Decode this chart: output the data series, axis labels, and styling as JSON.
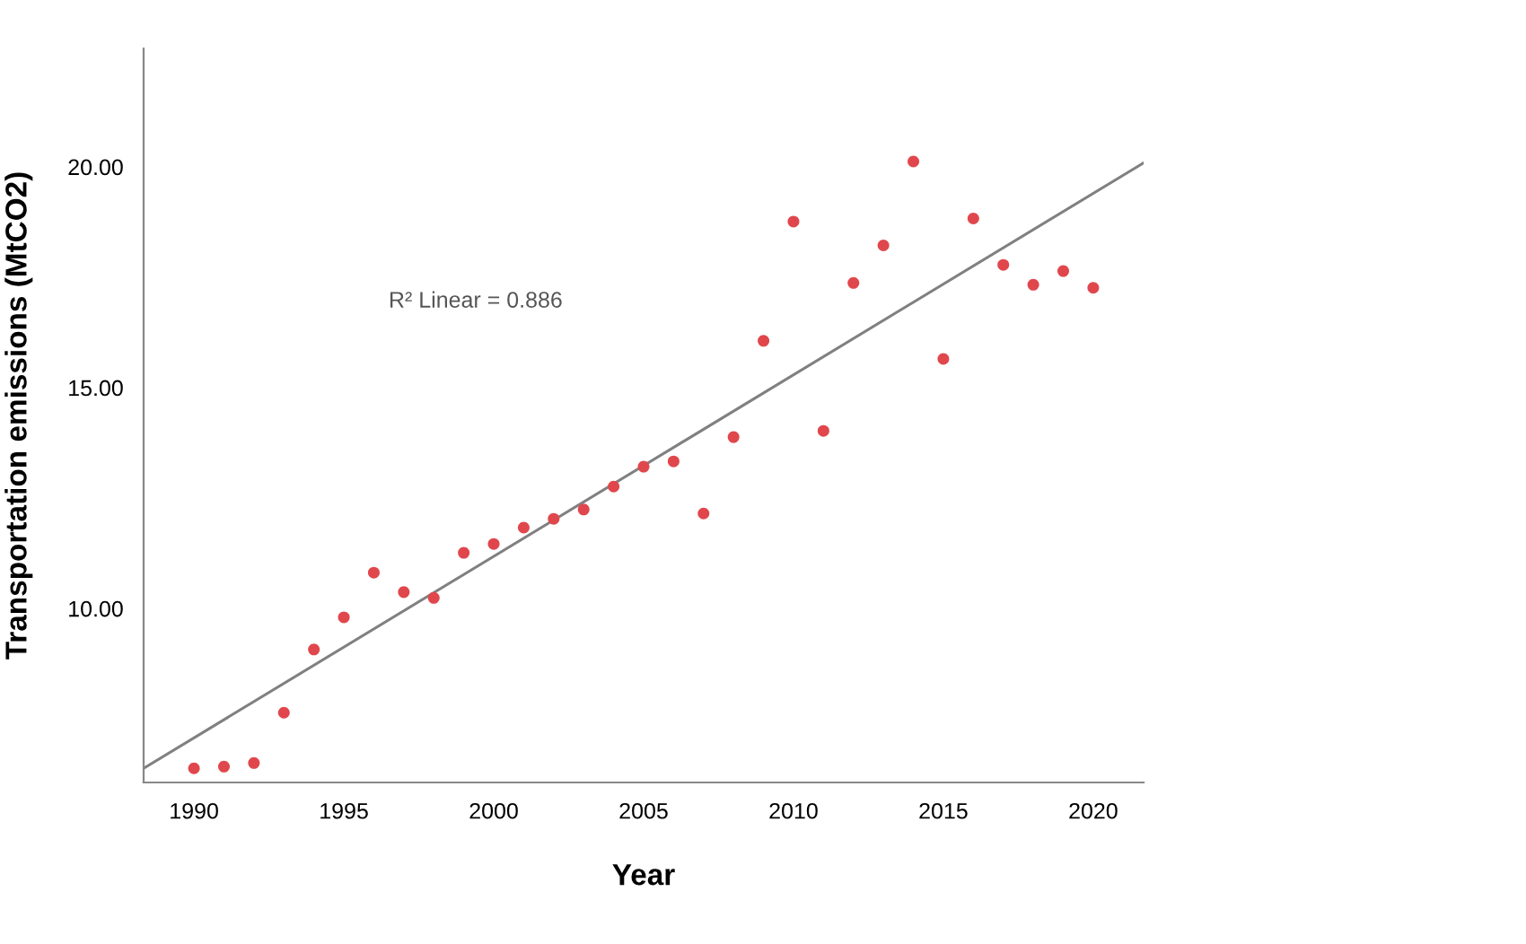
{
  "chart_data": {
    "type": "scatter",
    "xlabel": "Year",
    "ylabel": "Transportation emissions (MtCO2)",
    "x": [
      1990,
      1991,
      1992,
      1993,
      1994,
      1995,
      1996,
      1997,
      1998,
      1999,
      2000,
      2001,
      2002,
      2003,
      2004,
      2005,
      2006,
      2007,
      2008,
      2009,
      2010,
      2011,
      2012,
      2013,
      2014,
      2015,
      2016,
      2017,
      2018,
      2019,
      2020
    ],
    "series": [
      {
        "color": "#e0474c",
        "marker": "circle",
        "values": [
          6.38,
          6.42,
          6.5,
          7.64,
          9.07,
          9.8,
          10.81,
          10.37,
          10.24,
          11.26,
          11.46,
          11.83,
          12.03,
          12.24,
          12.76,
          13.21,
          13.33,
          12.15,
          13.88,
          16.06,
          18.76,
          14.02,
          17.37,
          18.22,
          20.12,
          15.65,
          18.83,
          17.78,
          17.33,
          17.64,
          17.26
        ]
      },
      {
        "type": "line",
        "color": "#808080",
        "x": [
          1988.32,
          2021.68
        ],
        "values": [
          6.38,
          20.09
        ]
      }
    ],
    "xlim": [
      1988.32,
      2021.68
    ],
    "ylim": [
      6.06,
      22.68
    ],
    "xticks": [
      1990,
      1995,
      2000,
      2005,
      2010,
      2015,
      2020
    ],
    "yticks": [
      {
        "value": 10,
        "label": "10.00"
      },
      {
        "value": 15,
        "label": "15.00"
      },
      {
        "value": 20,
        "label": "20.00"
      }
    ],
    "annotations": [
      "R² Linear = 0.886"
    ],
    "grid": false,
    "legend": false
  }
}
